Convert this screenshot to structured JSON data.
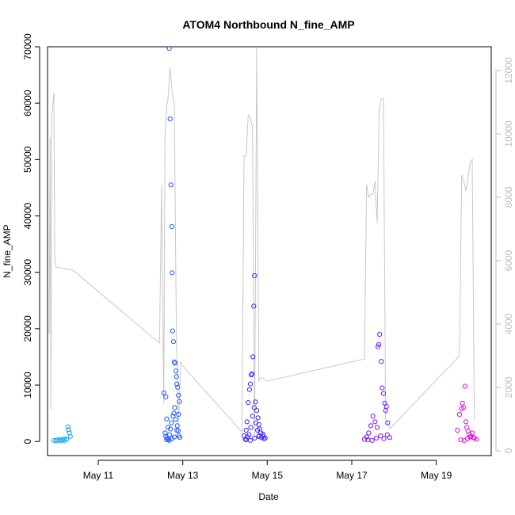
{
  "chart_data": {
    "type": "scatter",
    "title": "ATOM4 Northbound N_fine_AMP",
    "xlabel": "Date",
    "ylabel": "N_fine_AMP",
    "x_ticks": [
      "May 11",
      "May 13",
      "May 15",
      "May 17",
      "May 19"
    ],
    "xlim": [
      "May 9.8",
      "May 20.3"
    ],
    "ylim": [
      -2500,
      70000
    ],
    "y_ticks": [
      0,
      10000,
      20000,
      30000,
      40000,
      50000,
      60000,
      70000
    ],
    "y2lim": [
      -150,
      12750
    ],
    "y2_ticks": [
      0,
      2000,
      4000,
      6000,
      8000,
      10000,
      12000
    ],
    "grid": false,
    "legend": "none",
    "series": [
      {
        "kind": "points",
        "color": "#1ea0f0",
        "x": [
          9.95,
          10.0,
          10.05,
          10.1,
          10.15,
          10.2,
          10.25,
          10.28,
          10.3,
          10.32,
          10.34,
          10.2,
          10.1,
          10.0
        ],
        "y": [
          200,
          150,
          300,
          100,
          250,
          180,
          400,
          2600,
          2100,
          1500,
          900,
          500,
          350,
          120
        ]
      },
      {
        "kind": "points",
        "color": "#1e5aff",
        "x": [
          12.55,
          12.6,
          12.62,
          12.65,
          12.68,
          12.7,
          12.72,
          12.74,
          12.75,
          12.76,
          12.78,
          12.8,
          12.82,
          12.84,
          12.85,
          12.86,
          12.88,
          12.9,
          12.92,
          12.58,
          12.6,
          12.63,
          12.66,
          12.69,
          12.71,
          12.73,
          12.77,
          12.79,
          12.81,
          12.83,
          12.87,
          12.89,
          12.91,
          12.93,
          12.62,
          12.68,
          12.74,
          12.8,
          12.86,
          12.9
        ],
        "y": [
          8600,
          7900,
          4000,
          2500,
          69700,
          57200,
          45500,
          38100,
          29900,
          19600,
          17700,
          14100,
          13900,
          12500,
          11500,
          10200,
          9600,
          8200,
          7100,
          1500,
          900,
          600,
          400,
          1200,
          2200,
          3300,
          4500,
          5000,
          6000,
          3900,
          2800,
          1900,
          1000,
          700,
          300,
          200,
          500,
          800,
          2000,
          4800
        ]
      },
      {
        "kind": "points",
        "color": "#3c28ff",
        "x": [
          14.45,
          14.5,
          14.52,
          14.55,
          14.58,
          14.6,
          14.62,
          14.64,
          14.66,
          14.68,
          14.7,
          14.72,
          14.75,
          14.78,
          14.8,
          14.82,
          14.85,
          14.9,
          14.95,
          14.48,
          14.53,
          14.57,
          14.61,
          14.65,
          14.69,
          14.73,
          14.77,
          14.81,
          14.86,
          14.92,
          14.5,
          14.6,
          14.7,
          14.8,
          14.9
        ],
        "y": [
          1000,
          2000,
          3500,
          6900,
          9200,
          10200,
          11800,
          12000,
          15000,
          24000,
          29400,
          7000,
          5500,
          4200,
          3000,
          2200,
          1500,
          900,
          600,
          400,
          800,
          1200,
          2500,
          4500,
          6000,
          3300,
          2000,
          1000,
          700,
          500,
          300,
          200,
          600,
          900,
          1300
        ]
      },
      {
        "kind": "points",
        "color": "#7814ff",
        "x": [
          17.3,
          17.35,
          17.4,
          17.45,
          17.5,
          17.55,
          17.6,
          17.62,
          17.64,
          17.66,
          17.7,
          17.72,
          17.75,
          17.78,
          17.8,
          17.82,
          17.85,
          17.9,
          17.38,
          17.48,
          17.58,
          17.68,
          17.76,
          17.84
        ],
        "y": [
          400,
          800,
          1500,
          2800,
          4500,
          3500,
          2500,
          16800,
          17200,
          19000,
          14200,
          9500,
          8500,
          6800,
          5500,
          6200,
          3300,
          700,
          300,
          200,
          600,
          1000,
          500,
          1200
        ]
      },
      {
        "kind": "points",
        "color": "#dc14dc",
        "x": [
          19.5,
          19.55,
          19.6,
          19.62,
          19.65,
          19.68,
          19.7,
          19.72,
          19.75,
          19.78,
          19.8,
          19.85,
          19.9,
          19.95,
          19.58,
          19.66,
          19.74,
          19.82,
          19.88
        ],
        "y": [
          2000,
          4800,
          5800,
          6800,
          6000,
          9800,
          3500,
          2500,
          1800,
          1200,
          800,
          1500,
          600,
          400,
          300,
          200,
          500,
          900,
          700
        ]
      },
      {
        "kind": "line",
        "axis": "right",
        "color": "#c8c8c8",
        "x": [
          9.84,
          9.86,
          9.88,
          9.9,
          9.93,
          9.95,
          9.97,
          10.0,
          10.4,
          12.45,
          12.5,
          12.55,
          12.58,
          12.62,
          12.65,
          12.7,
          12.75,
          12.8,
          12.85,
          12.9,
          12.95,
          13.0,
          13.05,
          14.4,
          14.45,
          14.5,
          14.55,
          14.6,
          14.65,
          14.7,
          14.75,
          14.8,
          14.85,
          14.9,
          15.0,
          17.3,
          17.35,
          17.4,
          17.45,
          17.5,
          17.55,
          17.6,
          17.65,
          17.7,
          17.75,
          17.8,
          17.85,
          17.9,
          19.55,
          19.6,
          19.65,
          19.7,
          19.75,
          19.8,
          19.85,
          19.9
        ],
        "y": [
          3700,
          9900,
          1300,
          10500,
          11000,
          11300,
          6100,
          5800,
          5700,
          3400,
          8400,
          1500,
          9900,
          10900,
          11100,
          12100,
          11300,
          10900,
          3500,
          800,
          2800,
          2700,
          2600,
          600,
          9300,
          9300,
          10600,
          10500,
          10200,
          400,
          12700,
          2200,
          2300,
          2300,
          2200,
          2900,
          8400,
          8000,
          8100,
          8100,
          8500,
          7200,
          10800,
          11100,
          11100,
          1000,
          900,
          700,
          3000,
          8700,
          8500,
          8200,
          8600,
          9100,
          9200,
          1000
        ]
      }
    ]
  }
}
